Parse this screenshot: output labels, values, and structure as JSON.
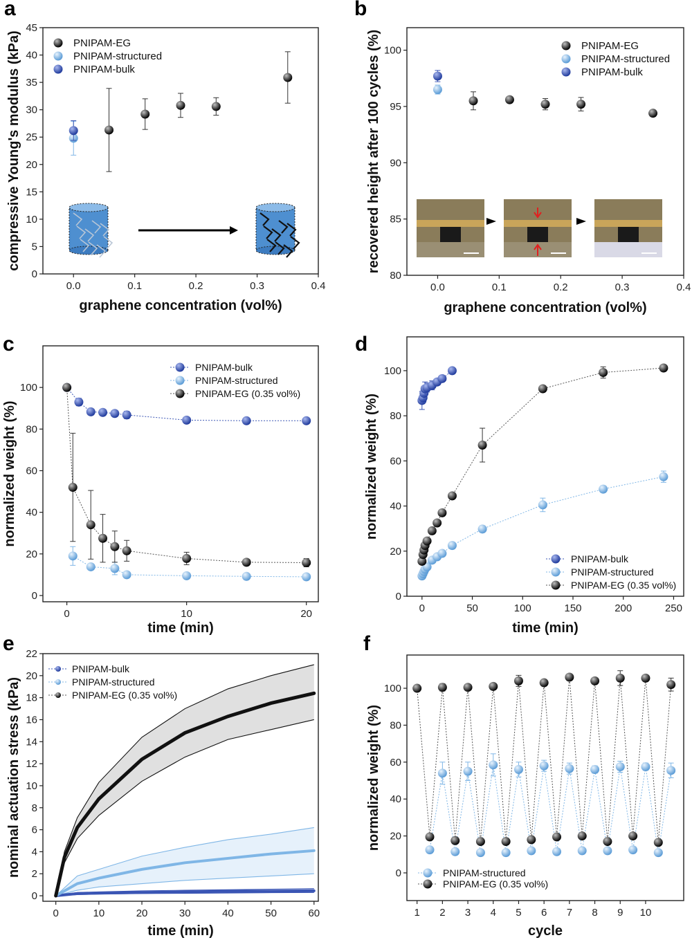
{
  "panels": [
    "a",
    "b",
    "c",
    "d",
    "e",
    "f"
  ],
  "colors": {
    "eg": "#111111",
    "structured": "#7fb6e6",
    "bulk": "#3a55b4",
    "band_eg": "#e0e0e0",
    "band_struct": "#e6f1fb"
  },
  "chart_data": [
    {
      "panel": "a",
      "type": "scatter",
      "xlabel": "graphene concentration (vol%)",
      "ylabel": "compressive Young's modulus (kPa)",
      "xlim": [
        -0.05,
        0.4
      ],
      "ylim": [
        0,
        45
      ],
      "xticks": [
        "0.0",
        "0.1",
        "0.2",
        "0.3",
        "0.4"
      ],
      "yticks": [
        "0",
        "5",
        "10",
        "15",
        "20",
        "25",
        "30",
        "35",
        "40",
        "45"
      ],
      "legend": [
        "PNIPAM-EG",
        "PNIPAM-structured",
        "PNIPAM-bulk"
      ],
      "legend_position": "top-left",
      "series": [
        {
          "name": "PNIPAM-EG",
          "x": [
            0.058,
            0.117,
            0.175,
            0.233,
            0.35
          ],
          "y": [
            26.3,
            29.2,
            30.8,
            30.6,
            35.9
          ],
          "err": [
            7.6,
            2.8,
            2.2,
            1.6,
            4.7
          ]
        },
        {
          "name": "PNIPAM-structured",
          "x": [
            0.0
          ],
          "y": [
            24.8
          ],
          "err": [
            3.1
          ]
        },
        {
          "name": "PNIPAM-bulk",
          "x": [
            0.0
          ],
          "y": [
            26.2
          ],
          "err": [
            1.8
          ]
        }
      ]
    },
    {
      "panel": "b",
      "type": "scatter",
      "xlabel": "graphene concentration (vol%)",
      "ylabel": "recovered height after 100 cycles (%)",
      "xlim": [
        -0.05,
        0.4
      ],
      "ylim": [
        80,
        102
      ],
      "xticks": [
        "0.0",
        "0.1",
        "0.2",
        "0.3",
        "0.4"
      ],
      "yticks": [
        "80",
        "85",
        "90",
        "95",
        "100"
      ],
      "legend": [
        "PNIPAM-EG",
        "PNIPAM-structured",
        "PNIPAM-bulk"
      ],
      "legend_position": "top-right",
      "series": [
        {
          "name": "PNIPAM-EG",
          "x": [
            0.058,
            0.117,
            0.175,
            0.233,
            0.35
          ],
          "y": [
            95.5,
            95.6,
            95.2,
            95.2,
            94.4
          ],
          "err": [
            0.8,
            0.2,
            0.5,
            0.6,
            0.2
          ]
        },
        {
          "name": "PNIPAM-structured",
          "x": [
            0.0
          ],
          "y": [
            96.5
          ],
          "err": [
            0.4
          ]
        },
        {
          "name": "PNIPAM-bulk",
          "x": [
            0.0
          ],
          "y": [
            97.7
          ],
          "err": [
            0.5
          ]
        }
      ]
    },
    {
      "panel": "c",
      "type": "scatter",
      "xlabel": "time (min)",
      "ylabel": "normalized weight (%)",
      "xlim": [
        -2,
        21
      ],
      "ylim": [
        -3,
        120
      ],
      "xticks": [
        "0",
        "10",
        "20"
      ],
      "yticks": [
        "0",
        "20",
        "40",
        "60",
        "80",
        "100"
      ],
      "legend": [
        "PNIPAM-bulk",
        "PNIPAM-structured",
        "PNIPAM-EG (0.35 vol%)"
      ],
      "legend_position": "top-right",
      "series": [
        {
          "name": "PNIPAM-bulk",
          "x": [
            0,
            1,
            2,
            3,
            4,
            5,
            10,
            15,
            20
          ],
          "y": [
            100,
            93,
            88.3,
            88,
            87.5,
            86.8,
            84.3,
            84,
            84
          ],
          "err": [
            0,
            1.8,
            1,
            0.5,
            0.5,
            1.8,
            0.5,
            0.5,
            0.5
          ]
        },
        {
          "name": "PNIPAM-structured",
          "x": [
            0.5,
            2,
            4,
            5,
            10,
            15,
            20
          ],
          "y": [
            19,
            13.8,
            13,
            10,
            9.5,
            9.2,
            9
          ],
          "err": [
            4.5,
            1.5,
            3,
            1,
            0.5,
            0.5,
            0.5
          ]
        },
        {
          "name": "PNIPAM-EG (0.35 vol%)",
          "x": [
            0,
            0.5,
            2,
            3,
            4,
            5,
            10,
            15,
            20
          ],
          "y": [
            100,
            52,
            34,
            27.5,
            23.5,
            21.5,
            17.8,
            16,
            15.8
          ],
          "err": [
            0,
            26,
            16.5,
            11.5,
            7.5,
            5,
            3,
            1,
            2
          ]
        }
      ]
    },
    {
      "panel": "d",
      "type": "scatter",
      "xlabel": "time (min)",
      "ylabel": "normalized weight (%)",
      "xlim": [
        -15,
        260
      ],
      "ylim": [
        0,
        115
      ],
      "xticks": [
        "0",
        "50",
        "100",
        "150",
        "200",
        "250"
      ],
      "yticks": [
        "0",
        "20",
        "40",
        "60",
        "80",
        "100"
      ],
      "legend": [
        "PNIPAM-bulk",
        "PNIPAM-structured",
        "PNIPAM-EG (0.35 vol%)"
      ],
      "legend_position": "bottom-right",
      "series": [
        {
          "name": "PNIPAM-bulk",
          "x": [
            0,
            1,
            2,
            3,
            5,
            10,
            15,
            20,
            30
          ],
          "y": [
            86.8,
            88,
            90,
            92,
            92.5,
            93.5,
            95,
            96.5,
            100
          ],
          "err": [
            4,
            2,
            3,
            3,
            2,
            2,
            1,
            1,
            0
          ]
        },
        {
          "name": "PNIPAM-structured",
          "x": [
            0,
            1,
            2,
            3,
            5,
            10,
            15,
            20,
            30,
            60,
            120,
            180,
            240
          ],
          "y": [
            9,
            10,
            11,
            12,
            13,
            16,
            17.5,
            19,
            22.5,
            29.8,
            40.5,
            47.5,
            53
          ],
          "err": [
            1,
            1,
            1,
            1,
            1,
            1,
            1,
            1,
            1.5,
            1.5,
            3,
            1.5,
            2.5
          ]
        },
        {
          "name": "PNIPAM-EG (0.35 vol%)",
          "x": [
            0,
            1,
            2,
            3,
            5,
            10,
            15,
            20,
            30,
            60,
            120,
            180,
            240
          ],
          "y": [
            15.5,
            18.5,
            20.5,
            22.5,
            24.5,
            29,
            32.5,
            37,
            44.5,
            67,
            92,
            99.2,
            101.2
          ],
          "err": [
            1,
            1,
            1,
            1,
            1,
            1,
            1,
            1.2,
            1,
            7.5,
            1,
            2.5,
            1
          ]
        }
      ]
    },
    {
      "panel": "e",
      "type": "line",
      "xlabel": "time (min)",
      "ylabel": "nominal actuation stress (kPa)",
      "xlim": [
        -3,
        61
      ],
      "ylim": [
        -0.5,
        22
      ],
      "xticks": [
        "0",
        "10",
        "20",
        "30",
        "40",
        "50",
        "60"
      ],
      "yticks": [
        "0",
        "2",
        "4",
        "6",
        "8",
        "10",
        "12",
        "14",
        "16",
        "18",
        "20",
        "22"
      ],
      "legend": [
        "PNIPAM-bulk",
        "PNIPAM-structured",
        "PNIPAM-EG (0.35 vol%)"
      ],
      "legend_position": "top-left",
      "series": [
        {
          "name": "PNIPAM-bulk",
          "x": [
            0,
            5,
            10,
            20,
            30,
            40,
            50,
            60
          ],
          "y": [
            0,
            0.2,
            0.25,
            0.3,
            0.35,
            0.4,
            0.42,
            0.45
          ],
          "lower": [
            0,
            0.1,
            0.15,
            0.2,
            0.22,
            0.25,
            0.28,
            0.3
          ],
          "upper": [
            0,
            0.3,
            0.35,
            0.45,
            0.5,
            0.55,
            0.6,
            0.65
          ]
        },
        {
          "name": "PNIPAM-structured",
          "x": [
            0,
            5,
            10,
            20,
            30,
            40,
            50,
            60
          ],
          "y": [
            0,
            1.1,
            1.6,
            2.4,
            3.0,
            3.4,
            3.8,
            4.1
          ],
          "lower": [
            0,
            0.5,
            0.8,
            1.1,
            1.4,
            1.6,
            1.8,
            2.0
          ],
          "upper": [
            0,
            1.8,
            2.4,
            3.6,
            4.4,
            5.1,
            5.6,
            6.2
          ]
        },
        {
          "name": "PNIPAM-EG (0.35 vol%)",
          "x": [
            0,
            2,
            5,
            10,
            20,
            30,
            40,
            50,
            60
          ],
          "y": [
            0,
            3.5,
            6.2,
            8.8,
            12.4,
            14.8,
            16.3,
            17.5,
            18.4
          ],
          "lower": [
            0,
            3.0,
            5.2,
            7.3,
            10.4,
            12.6,
            14.2,
            15.1,
            16.0
          ],
          "upper": [
            0,
            4.0,
            7.1,
            10.3,
            14.4,
            17.0,
            18.8,
            20.0,
            21.0
          ]
        }
      ]
    },
    {
      "panel": "f",
      "type": "scatter",
      "xlabel": "cycle",
      "ylabel": "normalized weight (%)",
      "xlim": [
        0.6,
        11.5
      ],
      "ylim": [
        -15,
        118
      ],
      "xticks": [
        "1",
        "2",
        "3",
        "4",
        "5",
        "6",
        "7",
        "8",
        "9",
        "10"
      ],
      "yticks": [
        "0",
        "20",
        "40",
        "60",
        "80",
        "100"
      ],
      "legend": [
        "PNIPAM-structured",
        "PNIPAM-EG (0.35 vol%)"
      ],
      "legend_position": "bottom-left",
      "series": [
        {
          "name": "PNIPAM-structured",
          "x": [
            1.5,
            2,
            2.5,
            3,
            3.5,
            4,
            4.5,
            5,
            5.5,
            6,
            6.5,
            7,
            7.5,
            8,
            8.5,
            9,
            9.5,
            10,
            10.5,
            11
          ],
          "y": [
            12.5,
            54,
            11.5,
            55,
            11,
            58.5,
            11,
            56,
            12,
            58,
            11.5,
            56.5,
            12,
            56,
            12,
            57.5,
            12.5,
            57.5,
            11,
            55.5
          ],
          "err": [
            1.5,
            6,
            1,
            5,
            1,
            6,
            1,
            4,
            1,
            3,
            1,
            3,
            1,
            2,
            1,
            3,
            1,
            2,
            1,
            4
          ]
        },
        {
          "name": "PNIPAM-EG (0.35 vol%)",
          "x": [
            1,
            1.5,
            2,
            2.5,
            3,
            3.5,
            4,
            4.5,
            5,
            5.5,
            6,
            6.5,
            7,
            7.5,
            8,
            8.5,
            9,
            9.5,
            10,
            10.5,
            11
          ],
          "y": [
            100,
            19.5,
            100.5,
            17.5,
            100.5,
            17,
            101,
            17,
            104,
            18,
            103,
            19.5,
            106,
            20,
            104,
            17,
            105.5,
            20,
            105.5,
            16.5,
            102
          ],
          "err": [
            0,
            1,
            2,
            1,
            1,
            1,
            1,
            1,
            3,
            1,
            1,
            1,
            1.5,
            1,
            1.5,
            1,
            4,
            1,
            1.5,
            1,
            3.5
          ]
        }
      ]
    }
  ]
}
